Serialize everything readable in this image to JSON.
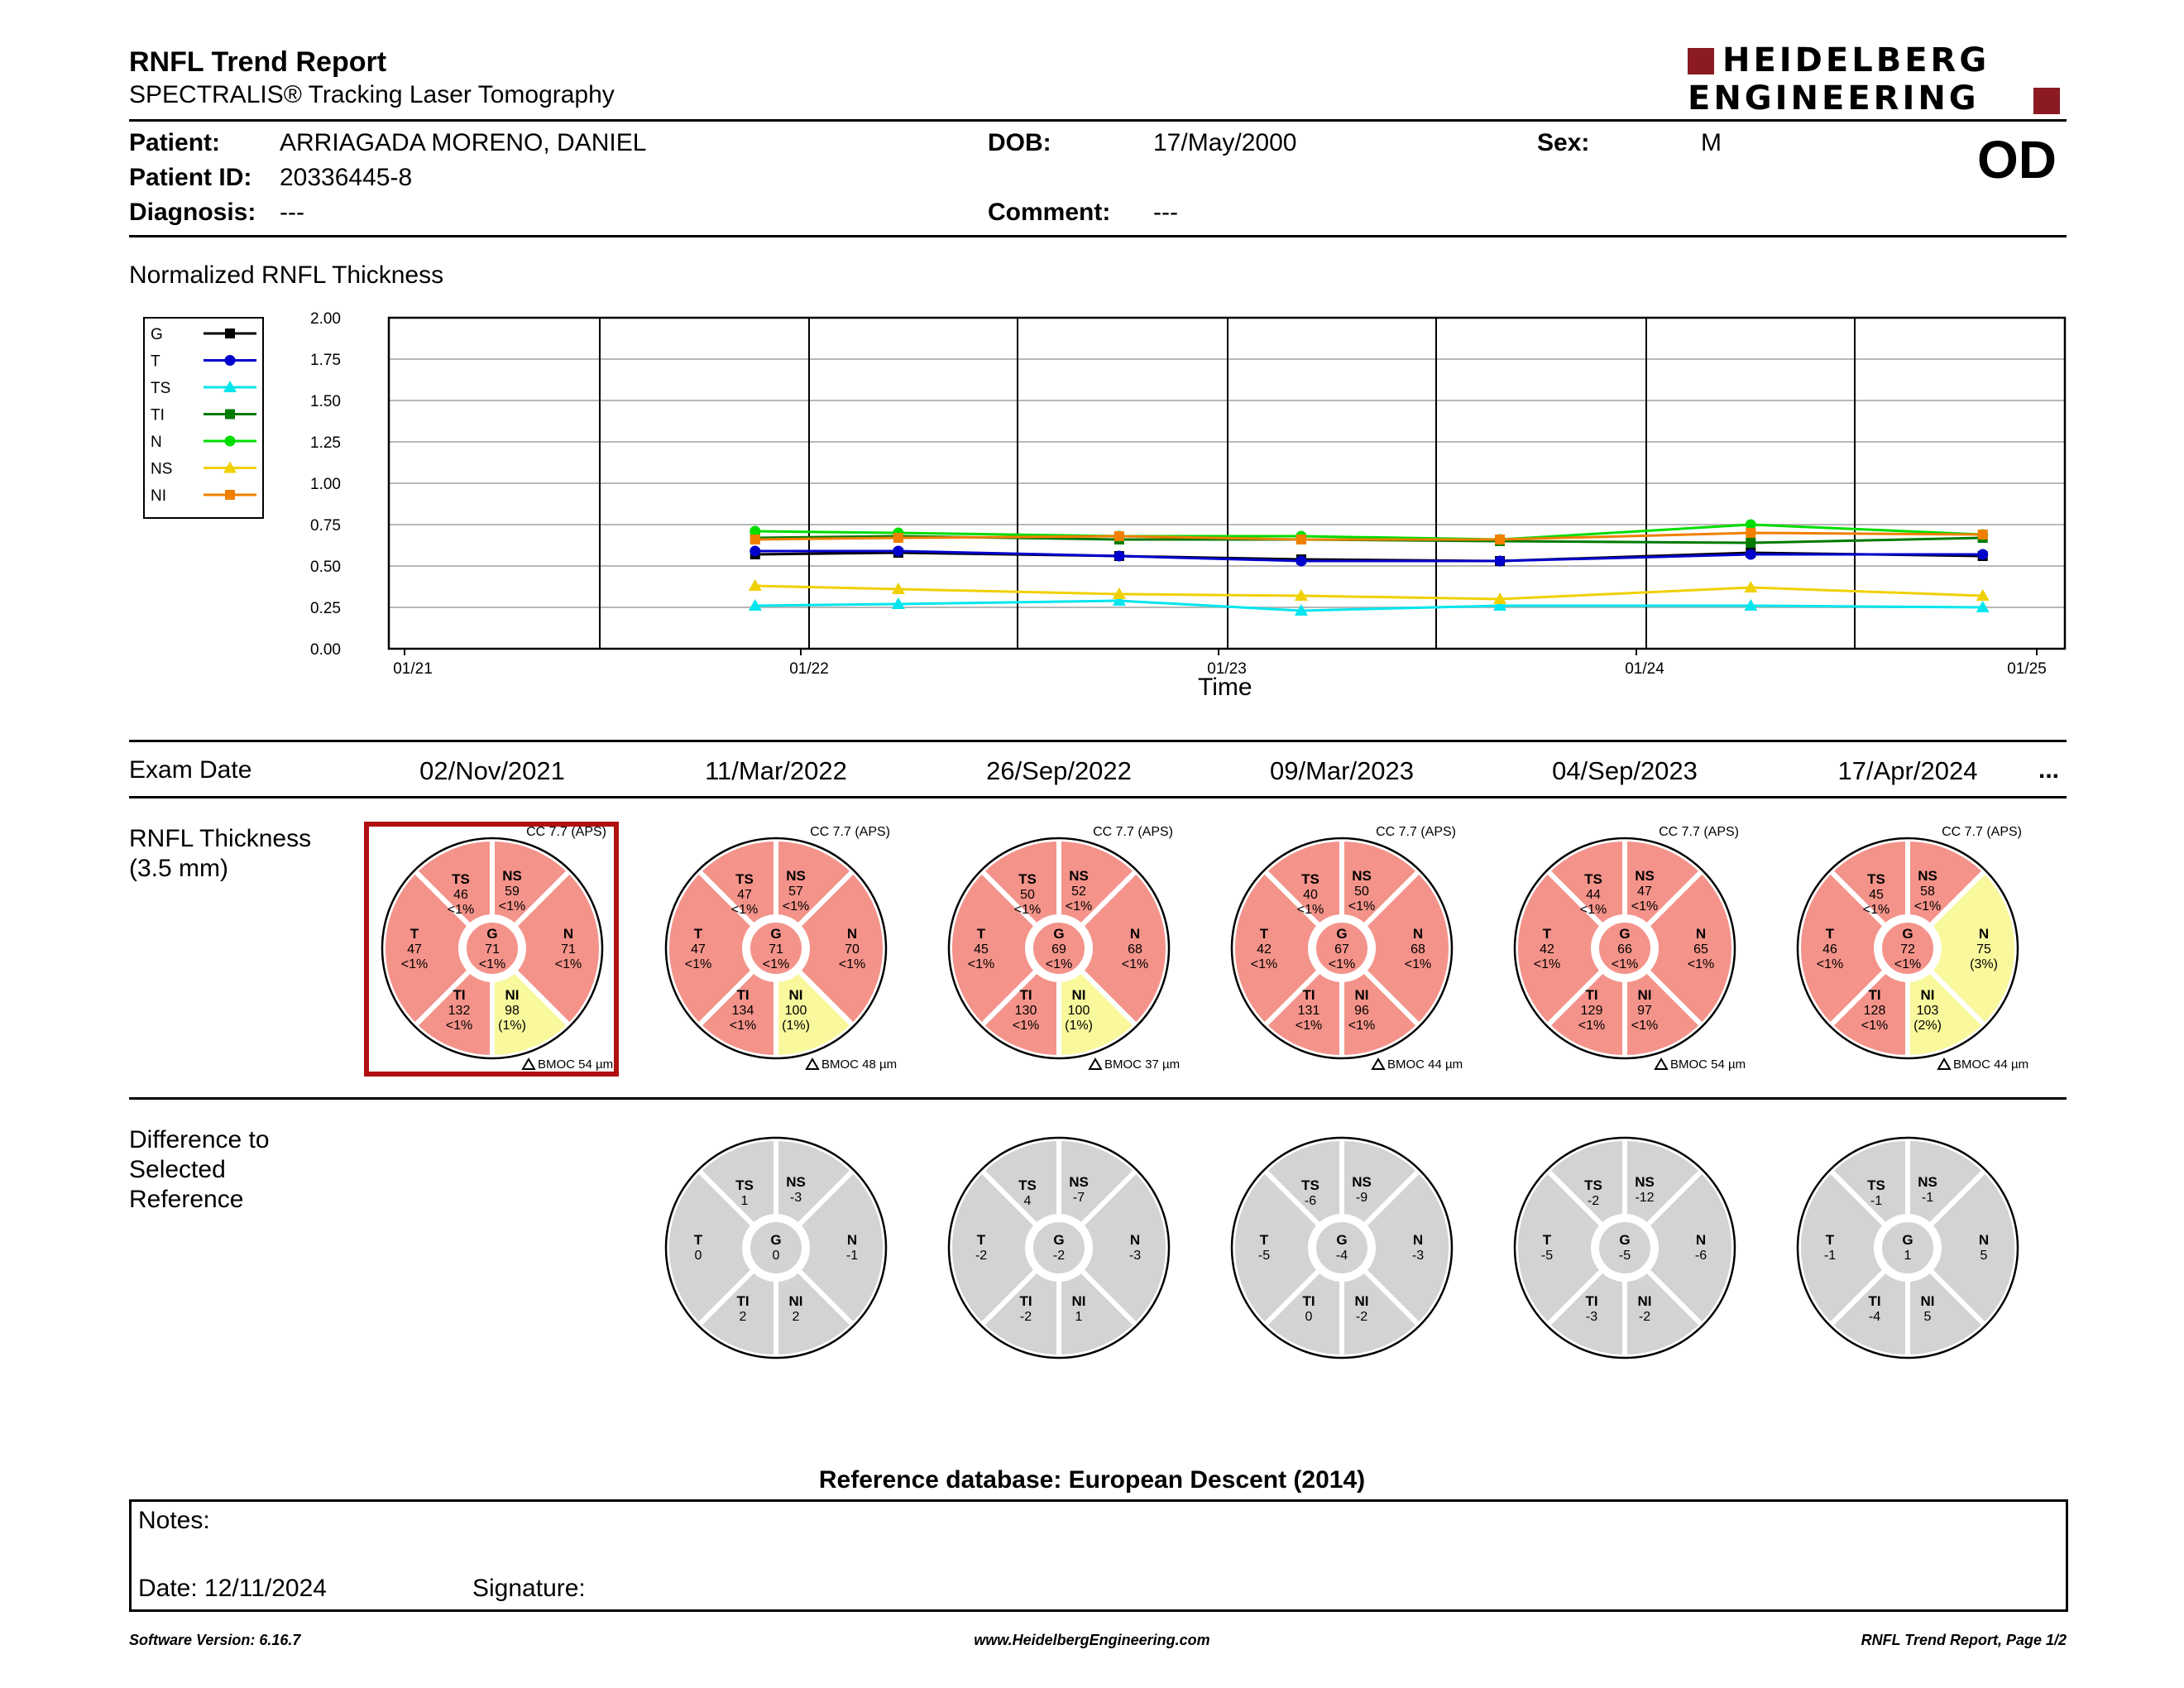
{
  "header": {
    "title": "RNFL Trend Report",
    "subtitle": "SPECTRALIS® Tracking Laser Tomography",
    "logo": {
      "line1": "HEIDELBERG",
      "line2": "ENGINEERING",
      "color": "#8b1a22"
    }
  },
  "patient": {
    "patient_label": "Patient:",
    "patient_name": "ARRIAGADA MORENO, DANIEL",
    "id_label": "Patient ID:",
    "patient_id": "20336445-8",
    "diagnosis_label": "Diagnosis:",
    "diagnosis": "---",
    "dob_label": "DOB:",
    "dob": "17/May/2000",
    "comment_label": "Comment:",
    "comment": "---",
    "sex_label": "Sex:",
    "sex": "M",
    "eye": "OD"
  },
  "chart_section_title": "Normalized RNFL Thickness",
  "chart_data": {
    "type": "line",
    "xlabel": "Time",
    "ylabel": "",
    "ylim": [
      0,
      2.0
    ],
    "yticks": [
      "0.00",
      "0.25",
      "0.50",
      "0.75",
      "1.00",
      "1.25",
      "1.50",
      "1.75",
      "2.00"
    ],
    "xticks": [
      "01/21",
      "01/22",
      "01/23",
      "01/24",
      "01/25"
    ],
    "x": [
      "2021-11-02",
      "2022-03-11",
      "2022-09-26",
      "2023-03-09",
      "2023-09-04",
      "2024-04-17",
      "2024-11-12"
    ],
    "series": [
      {
        "name": "G",
        "color": "#000000",
        "marker": "square",
        "values": [
          0.57,
          0.58,
          0.56,
          0.54,
          0.53,
          0.58,
          0.56
        ]
      },
      {
        "name": "T",
        "color": "#0000cc",
        "marker": "circle",
        "values": [
          0.59,
          0.59,
          0.56,
          0.53,
          0.53,
          0.57,
          0.57
        ]
      },
      {
        "name": "TS",
        "color": "#00e5ee",
        "marker": "triangle",
        "values": [
          0.26,
          0.27,
          0.29,
          0.23,
          0.26,
          0.26,
          0.25
        ]
      },
      {
        "name": "TI",
        "color": "#007a00",
        "marker": "square",
        "values": [
          0.67,
          0.68,
          0.66,
          0.66,
          0.65,
          0.64,
          0.67
        ]
      },
      {
        "name": "N",
        "color": "#00dd00",
        "marker": "circle",
        "values": [
          0.71,
          0.7,
          0.68,
          0.68,
          0.66,
          0.75,
          0.69
        ]
      },
      {
        "name": "NS",
        "color": "#f0d000",
        "marker": "triangle",
        "values": [
          0.38,
          0.36,
          0.33,
          0.32,
          0.3,
          0.37,
          0.32
        ]
      },
      {
        "name": "NI",
        "color": "#f08000",
        "marker": "square",
        "values": [
          0.66,
          0.67,
          0.68,
          0.66,
          0.66,
          0.7,
          0.69
        ]
      }
    ]
  },
  "exams_header": {
    "label": "Exam Date",
    "more": "..."
  },
  "exam_dates": [
    "02/Nov/2021",
    "11/Mar/2022",
    "26/Sep/2022",
    "09/Mar/2023",
    "04/Sep/2023",
    "17/Apr/2024"
  ],
  "thickness_label": "RNFL Thickness\n(3.5 mm)",
  "difference_label": "Difference to\nSelected\nReference",
  "colors": {
    "red_sector": "#f4938a",
    "yellow_sector": "#f9f89c",
    "gray_sector": "#d3d3d3",
    "selected_frame": "#b01010"
  },
  "thickness_maps": [
    {
      "cc": "CC 7.7 (APS)",
      "bmo": "BMOC 54 µm",
      "sectors": {
        "TS": [
          "46",
          "<1%"
        ],
        "NS": [
          "59",
          "<1%"
        ],
        "T": [
          "47",
          "<1%"
        ],
        "G": [
          "71",
          "<1%"
        ],
        "N": [
          "71",
          "<1%"
        ],
        "TI": [
          "132",
          "<1%"
        ],
        "NI": [
          "98",
          "(1%)"
        ]
      },
      "yellow": [
        "NI"
      ],
      "selected": true
    },
    {
      "cc": "CC 7.7 (APS)",
      "bmo": "BMOC 48 µm",
      "sectors": {
        "TS": [
          "47",
          "<1%"
        ],
        "NS": [
          "57",
          "<1%"
        ],
        "T": [
          "47",
          "<1%"
        ],
        "G": [
          "71",
          "<1%"
        ],
        "N": [
          "70",
          "<1%"
        ],
        "TI": [
          "134",
          "<1%"
        ],
        "NI": [
          "100",
          "(1%)"
        ]
      },
      "yellow": [
        "NI"
      ],
      "selected": false
    },
    {
      "cc": "CC 7.7 (APS)",
      "bmo": "BMOC 37 µm",
      "sectors": {
        "TS": [
          "50",
          "<1%"
        ],
        "NS": [
          "52",
          "<1%"
        ],
        "T": [
          "45",
          "<1%"
        ],
        "G": [
          "69",
          "<1%"
        ],
        "N": [
          "68",
          "<1%"
        ],
        "TI": [
          "130",
          "<1%"
        ],
        "NI": [
          "100",
          "(1%)"
        ]
      },
      "yellow": [
        "NI"
      ],
      "selected": false
    },
    {
      "cc": "CC 7.7 (APS)",
      "bmo": "BMOC 44 µm",
      "sectors": {
        "TS": [
          "40",
          "<1%"
        ],
        "NS": [
          "50",
          "<1%"
        ],
        "T": [
          "42",
          "<1%"
        ],
        "G": [
          "67",
          "<1%"
        ],
        "N": [
          "68",
          "<1%"
        ],
        "TI": [
          "131",
          "<1%"
        ],
        "NI": [
          "96",
          "<1%"
        ]
      },
      "yellow": [],
      "selected": false
    },
    {
      "cc": "CC 7.7 (APS)",
      "bmo": "BMOC 54 µm",
      "sectors": {
        "TS": [
          "44",
          "<1%"
        ],
        "NS": [
          "47",
          "<1%"
        ],
        "T": [
          "42",
          "<1%"
        ],
        "G": [
          "66",
          "<1%"
        ],
        "N": [
          "65",
          "<1%"
        ],
        "TI": [
          "129",
          "<1%"
        ],
        "NI": [
          "97",
          "<1%"
        ]
      },
      "yellow": [],
      "selected": false
    },
    {
      "cc": "CC 7.7 (APS)",
      "bmo": "BMOC 44 µm",
      "sectors": {
        "TS": [
          "45",
          "<1%"
        ],
        "NS": [
          "58",
          "<1%"
        ],
        "T": [
          "46",
          "<1%"
        ],
        "G": [
          "72",
          "<1%"
        ],
        "N": [
          "75",
          "(3%)"
        ],
        "TI": [
          "128",
          "<1%"
        ],
        "NI": [
          "103",
          "(2%)"
        ]
      },
      "yellow": [
        "N",
        "NI"
      ],
      "selected": false
    }
  ],
  "difference_maps": [
    null,
    {
      "TS": "1",
      "NS": "-3",
      "T": "0",
      "G": "0",
      "N": "-1",
      "TI": "2",
      "NI": "2"
    },
    {
      "TS": "4",
      "NS": "-7",
      "T": "-2",
      "G": "-2",
      "N": "-3",
      "TI": "-2",
      "NI": "1"
    },
    {
      "TS": "-6",
      "NS": "-9",
      "T": "-5",
      "G": "-4",
      "N": "-3",
      "TI": "0",
      "NI": "-2"
    },
    {
      "TS": "-2",
      "NS": "-12",
      "T": "-5",
      "G": "-5",
      "N": "-6",
      "TI": "-3",
      "NI": "-2"
    },
    {
      "TS": "-1",
      "NS": "-1",
      "T": "-1",
      "G": "1",
      "N": "5",
      "TI": "-4",
      "NI": "5"
    }
  ],
  "reference_db": "Reference database: European Descent (2014)",
  "notes": {
    "label": "Notes:",
    "date": "Date: 12/11/2024",
    "signature": "Signature:"
  },
  "footer": {
    "version": "Software Version: 6.16.7",
    "url": "www.HeidelbergEngineering.com",
    "page": "RNFL Trend Report, Page 1/2"
  }
}
